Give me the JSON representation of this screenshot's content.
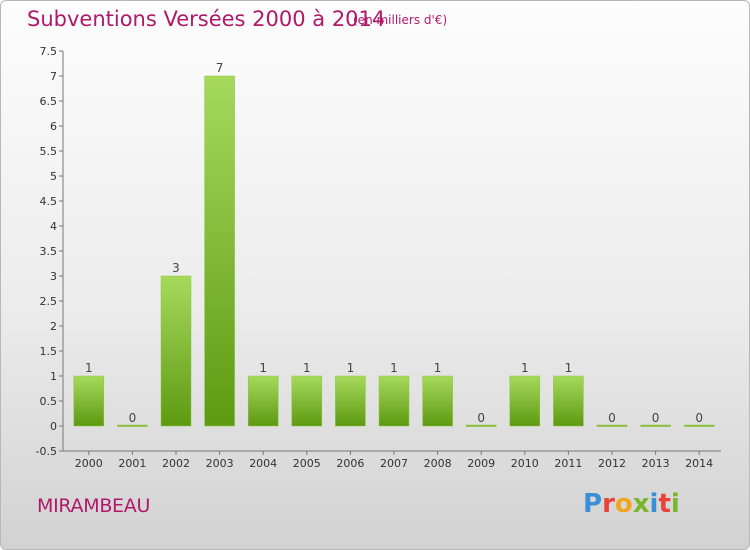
{
  "header": {
    "title": "Subventions Versées 2000 à 2014",
    "subtitle": "(en milliers d'€)"
  },
  "footer": {
    "commune": "MIRAMBEAU",
    "logo": {
      "letters": [
        "P",
        "r",
        "o",
        "x",
        "i",
        "t",
        "i"
      ],
      "colors": [
        "#3a8fd6",
        "#e8423a",
        "#f2a51e",
        "#7ab62b",
        "#3a8fd6",
        "#e8423a",
        "#7ab62b"
      ]
    }
  },
  "colors": {
    "bar_light": "#a6d95c",
    "bar_dark": "#5e9a12",
    "axis": "#777777",
    "accent": "#b0186a"
  },
  "chart_data": {
    "type": "bar",
    "categories": [
      "2000",
      "2001",
      "2002",
      "2003",
      "2004",
      "2005",
      "2006",
      "2007",
      "2008",
      "2009",
      "2010",
      "2011",
      "2012",
      "2013",
      "2014"
    ],
    "values": [
      1,
      0,
      3,
      7,
      1,
      1,
      1,
      1,
      1,
      0,
      1,
      1,
      0,
      0,
      0
    ],
    "value_labels": [
      "1",
      "0",
      "3",
      "7",
      "1",
      "1",
      "1",
      "1",
      "1",
      "0",
      "1",
      "1",
      "0",
      "0",
      "0"
    ],
    "y_ticks": [
      "-0.5",
      "0",
      "0.5",
      "1",
      "1.5",
      "2",
      "2.5",
      "3",
      "3.5",
      "4",
      "4.5",
      "5",
      "5.5",
      "6",
      "6.5",
      "7",
      "7.5"
    ],
    "ylim": [
      -0.5,
      7.5
    ],
    "xlabel": "",
    "ylabel": "",
    "grid": false,
    "legend": "none"
  }
}
